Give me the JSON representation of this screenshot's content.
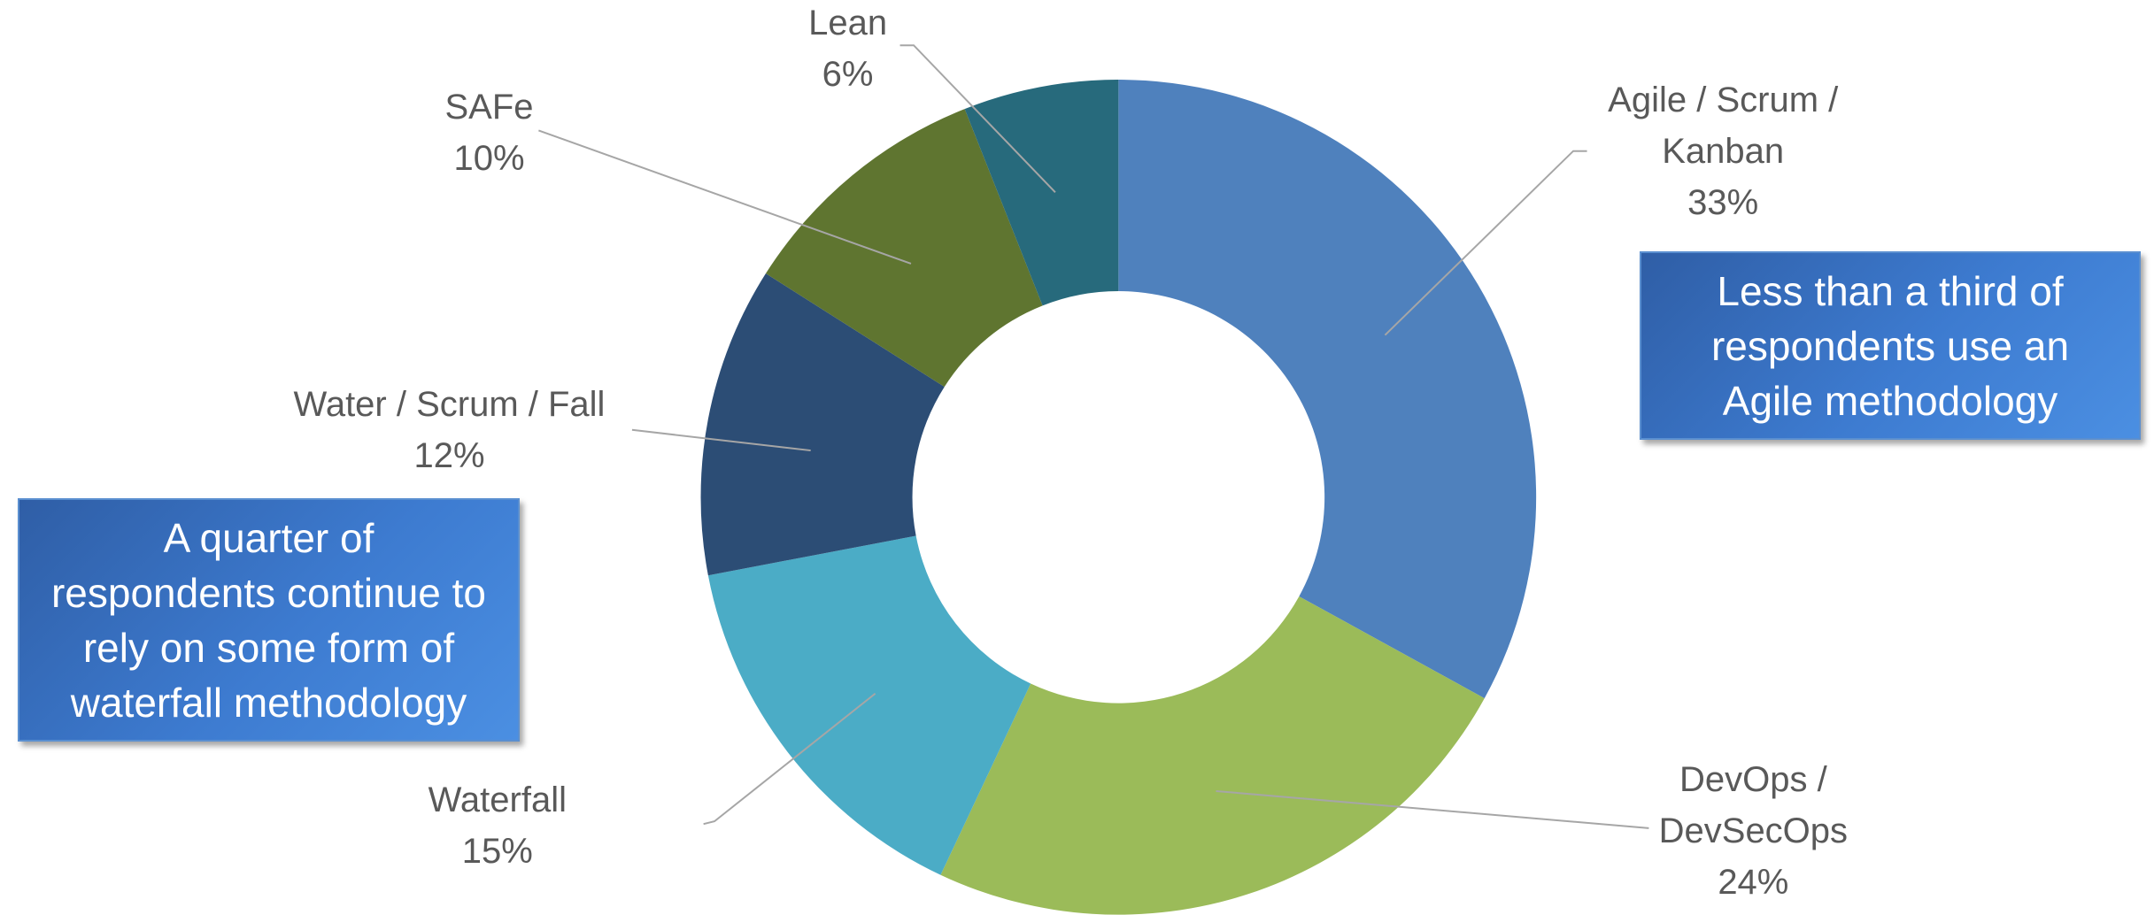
{
  "chart_data": {
    "type": "donut",
    "categories": [
      "Agile / Scrum / Kanban",
      "DevOps / DevSecOps",
      "Waterfall",
      "Water / Scrum / Fall",
      "SAFe",
      "Lean"
    ],
    "values": [
      33,
      24,
      15,
      12,
      10,
      6
    ],
    "value_labels": [
      "33%",
      "24%",
      "15%",
      "12%",
      "10%",
      "6%"
    ],
    "colors": [
      "#4f81bd",
      "#9bbb59",
      "#4bacc6",
      "#2c4d75",
      "#5f7530",
      "#276a7c"
    ],
    "annotations": [
      "Less than a third of respondents use an Agile methodology",
      "A quarter of respondents continue to rely on some form of waterfall methodology"
    ]
  }
}
